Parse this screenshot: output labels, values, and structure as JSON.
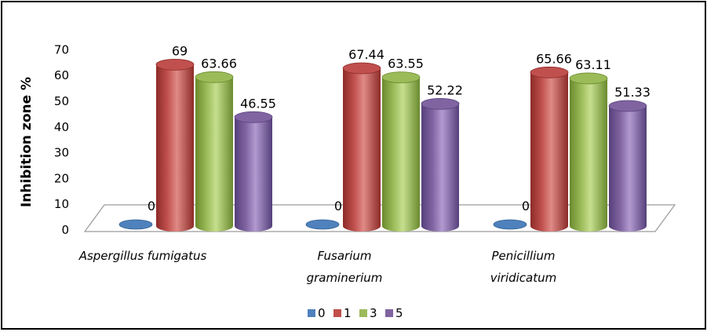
{
  "chart_data": {
    "type": "bar",
    "categories": [
      [
        "Aspergillus fumigatus"
      ],
      [
        "Fusarium",
        "graminerium"
      ],
      [
        "Penicillium",
        "viridicatum"
      ]
    ],
    "series": [
      {
        "name": "0",
        "values": [
          0,
          0,
          0
        ],
        "color": "#4f81bd",
        "dark": "#2f5f8f",
        "light": "#8fb4e3"
      },
      {
        "name": "1",
        "values": [
          69,
          67.44,
          65.66
        ],
        "color": "#c0504d",
        "dark": "#8c2b28",
        "light": "#e08a86"
      },
      {
        "name": "3",
        "values": [
          63.66,
          63.55,
          63.11
        ],
        "color": "#9bbb59",
        "dark": "#6a8a2e",
        "light": "#c6df8e"
      },
      {
        "name": "5",
        "values": [
          46.55,
          52.22,
          51.33
        ],
        "color": "#8064a2",
        "dark": "#56407a",
        "light": "#b29ad0"
      }
    ],
    "data_labels": [
      [
        "0",
        "69",
        "63.66",
        "46.55"
      ],
      [
        "0",
        "67.44",
        "63.55",
        "52.22"
      ],
      [
        "0",
        "65.66",
        "63.11",
        "51.33"
      ]
    ],
    "ylabel": "Inhibition zone %",
    "yticks": [
      0,
      10,
      20,
      30,
      40,
      50,
      60,
      70
    ],
    "ylim": [
      0,
      70
    ],
    "legend_position": "bottom",
    "style": "3d-cylinder"
  }
}
